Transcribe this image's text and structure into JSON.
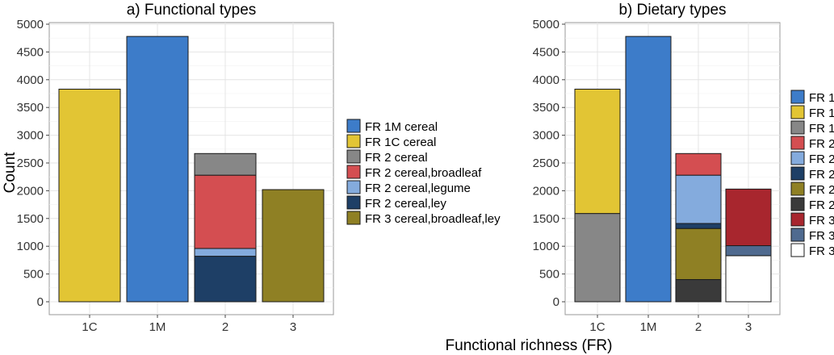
{
  "figure": {
    "shared_xlabel": "Functional richness (FR)"
  },
  "chart_data": [
    {
      "type": "bar",
      "stacked": true,
      "title": "a) Functional types",
      "xlabel": "",
      "ylabel": "Count",
      "categories": [
        "1C",
        "1M",
        "2",
        "3"
      ],
      "ylim": [
        0,
        5000
      ],
      "yticks": [
        0,
        500,
        1000,
        1500,
        2000,
        2500,
        3000,
        3500,
        4000,
        4500,
        5000
      ],
      "grid": true,
      "legend_position": "right",
      "series": [
        {
          "name": "FR 1M cereal",
          "color": "#3D7CC9",
          "values": [
            0,
            4780,
            0,
            0
          ]
        },
        {
          "name": "FR 1C cereal",
          "color": "#E2C534",
          "values": [
            3830,
            0,
            0,
            0
          ]
        },
        {
          "name": "FR 2 cereal",
          "color": "#878787",
          "values": [
            0,
            0,
            390,
            0
          ]
        },
        {
          "name": "FR 2 cereal,broadleaf",
          "color": "#D44E51",
          "values": [
            0,
            0,
            1320,
            0
          ]
        },
        {
          "name": "FR 2 cereal,legume",
          "color": "#84ABDD",
          "values": [
            0,
            0,
            140,
            0
          ]
        },
        {
          "name": "FR 2 cereal,ley",
          "color": "#1E3F66",
          "values": [
            0,
            0,
            820,
            0
          ]
        },
        {
          "name": "FR 3 cereal,broadleaf,ley",
          "color": "#8F8024",
          "values": [
            0,
            0,
            0,
            2020
          ]
        }
      ]
    },
    {
      "type": "bar",
      "stacked": true,
      "title": "b) Dietary types",
      "xlabel": "",
      "ylabel": "",
      "categories": [
        "1C",
        "1M",
        "2",
        "3"
      ],
      "ylim": [
        0,
        5000
      ],
      "yticks": [
        0,
        500,
        1000,
        1500,
        2000,
        2500,
        3000,
        3500,
        4000,
        4500,
        5000
      ],
      "grid": true,
      "legend_position": "right",
      "series": [
        {
          "name": "FR 1",
          "color": "#3D7CC9",
          "values": [
            0,
            4780,
            0,
            0
          ]
        },
        {
          "name": "FR 1",
          "color": "#E2C534",
          "values": [
            2240,
            0,
            0,
            0
          ]
        },
        {
          "name": "FR 1",
          "color": "#878787",
          "values": [
            1590,
            0,
            0,
            0
          ]
        },
        {
          "name": "FR 2",
          "color": "#D44E51",
          "values": [
            0,
            0,
            390,
            0
          ]
        },
        {
          "name": "FR 2",
          "color": "#84ABDD",
          "values": [
            0,
            0,
            870,
            0
          ]
        },
        {
          "name": "FR 2",
          "color": "#1E3F66",
          "values": [
            0,
            0,
            90,
            0
          ]
        },
        {
          "name": "FR 2",
          "color": "#8F8024",
          "values": [
            0,
            0,
            920,
            0
          ]
        },
        {
          "name": "FR 2",
          "color": "#3A3A3A",
          "values": [
            0,
            0,
            400,
            0
          ]
        },
        {
          "name": "FR 3",
          "color": "#A8262E",
          "values": [
            0,
            0,
            0,
            1020
          ]
        },
        {
          "name": "FR 3",
          "color": "#4F6A8F",
          "values": [
            0,
            0,
            0,
            180
          ]
        },
        {
          "name": "FR 3",
          "color": "#FFFFFF",
          "values": [
            0,
            0,
            0,
            830
          ]
        }
      ]
    }
  ]
}
